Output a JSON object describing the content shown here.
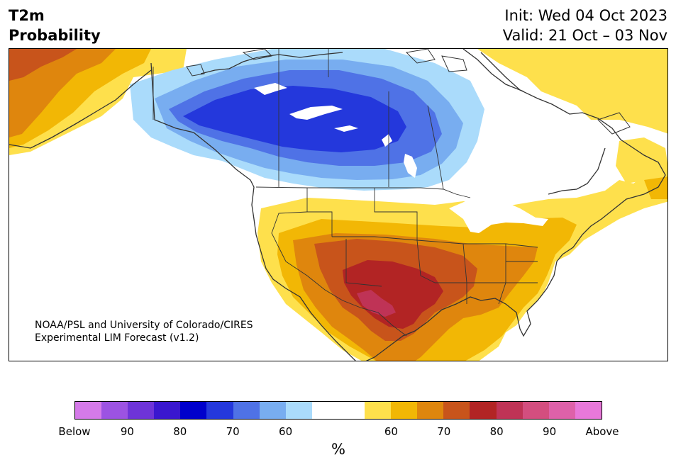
{
  "header": {
    "title_line1": "T2m",
    "title_line2": "Probability",
    "init": "Init: Wed 04 Oct 2023",
    "valid": "Valid: 21 Oct – 03 Nov"
  },
  "credit": {
    "line1": "NOAA/PSL and University of Colorado/CIRES",
    "line2": "Experimental LIM Forecast (v1.2)"
  },
  "colorbar": {
    "unit": "%",
    "colors": [
      "#d57ae9",
      "#9c53e2",
      "#6e34d8",
      "#3a17cf",
      "#0000cc",
      "#2438dc",
      "#4f72e6",
      "#78adf0",
      "#aadbfb",
      "#ffffff",
      "#ffffff",
      "#fee04c",
      "#f2b705",
      "#df860d",
      "#c8541b",
      "#b22424",
      "#bf3356",
      "#d34e7f",
      "#de61a9",
      "#e878d9"
    ],
    "labels": [
      {
        "text": "Below",
        "edge": 0
      },
      {
        "text": "90",
        "edge": 2
      },
      {
        "text": "80",
        "edge": 4
      },
      {
        "text": "70",
        "edge": 6
      },
      {
        "text": "60",
        "edge": 8
      },
      {
        "text": "60",
        "edge": 12
      },
      {
        "text": "70",
        "edge": 14
      },
      {
        "text": "80",
        "edge": 16
      },
      {
        "text": "90",
        "edge": 18
      },
      {
        "text": "Above",
        "edge": 20
      }
    ]
  },
  "map": {
    "region": "North America",
    "colors": {
      "warm60": "#fee04c",
      "warm65": "#f2b705",
      "warm70": "#df860d",
      "warm75": "#c8541b",
      "warm80": "#b22424",
      "warm85": "#bf3356",
      "cold60": "#aadbfb",
      "cold65": "#78adf0",
      "cold70": "#4f72e6",
      "cold75": "#2438dc",
      "border": "#333333"
    }
  }
}
